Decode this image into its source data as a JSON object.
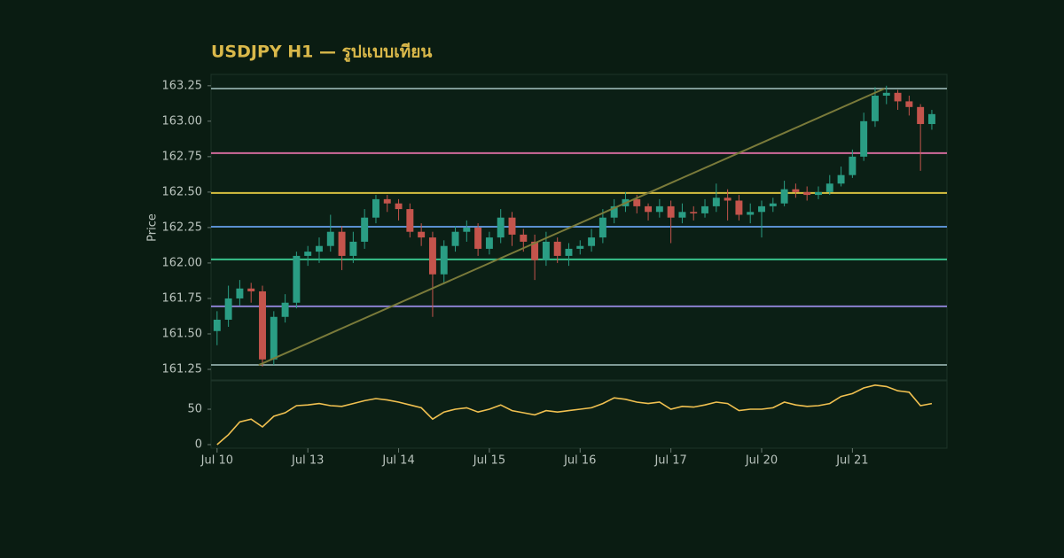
{
  "chart_data": [
    {
      "type": "candlestick",
      "title": "USDJPY H1 — รูปแบบเทียน",
      "ylabel": "Price",
      "up_color": "#2a9d84",
      "down_color": "#c4544c",
      "x": [
        0,
        3,
        6,
        9,
        12,
        15,
        18,
        21,
        24,
        27,
        30,
        33,
        36,
        39,
        42,
        45,
        48,
        51,
        54,
        57,
        60,
        63,
        66,
        69,
        72,
        75,
        78,
        81,
        84,
        87,
        90,
        93,
        96,
        99,
        102,
        105,
        108,
        111,
        114,
        117,
        120,
        123,
        126,
        129,
        132,
        135,
        138,
        141,
        144,
        147,
        150,
        153,
        156,
        159,
        162,
        165,
        168,
        171,
        174,
        177,
        180,
        183,
        186,
        189
      ],
      "open": [
        161.52,
        161.6,
        161.75,
        161.82,
        161.8,
        161.32,
        161.62,
        161.72,
        162.05,
        162.08,
        162.12,
        162.22,
        162.05,
        162.15,
        162.32,
        162.45,
        162.42,
        162.38,
        162.22,
        162.18,
        161.92,
        162.12,
        162.22,
        162.25,
        162.1,
        162.18,
        162.32,
        162.2,
        162.15,
        162.02,
        162.15,
        162.05,
        162.1,
        162.12,
        162.18,
        162.32,
        162.4,
        162.45,
        162.4,
        162.36,
        162.4,
        162.32,
        162.36,
        162.35,
        162.4,
        162.46,
        162.44,
        162.34,
        162.36,
        162.4,
        162.42,
        162.52,
        162.5,
        162.48,
        162.5,
        162.56,
        162.62,
        162.75,
        163.0,
        163.18,
        163.2,
        163.14,
        163.1,
        162.98
      ],
      "high": [
        161.66,
        161.84,
        161.88,
        161.86,
        161.84,
        161.66,
        161.78,
        162.08,
        162.12,
        162.18,
        162.34,
        162.26,
        162.22,
        162.38,
        162.48,
        162.48,
        162.45,
        162.42,
        162.28,
        162.22,
        162.16,
        162.26,
        162.3,
        162.28,
        162.22,
        162.38,
        162.36,
        162.24,
        162.2,
        162.22,
        162.18,
        162.14,
        162.16,
        162.24,
        162.38,
        162.45,
        162.5,
        162.48,
        162.42,
        162.45,
        162.44,
        162.42,
        162.4,
        162.45,
        162.56,
        162.52,
        162.48,
        162.42,
        162.44,
        162.46,
        162.58,
        162.56,
        162.54,
        162.54,
        162.62,
        162.68,
        162.8,
        163.06,
        163.24,
        163.25,
        163.22,
        163.18,
        163.12,
        163.08
      ],
      "low": [
        161.42,
        161.55,
        161.7,
        161.72,
        161.27,
        161.28,
        161.58,
        161.68,
        161.98,
        162.0,
        162.08,
        161.95,
        162.0,
        162.1,
        162.28,
        162.36,
        162.3,
        162.18,
        162.12,
        161.62,
        161.85,
        162.08,
        162.15,
        162.05,
        162.06,
        162.14,
        162.12,
        162.08,
        161.88,
        161.98,
        162.0,
        161.98,
        162.06,
        162.08,
        162.14,
        162.28,
        162.36,
        162.35,
        162.3,
        162.32,
        162.14,
        162.28,
        162.3,
        162.32,
        162.36,
        162.3,
        162.3,
        162.28,
        162.18,
        162.36,
        162.4,
        162.46,
        162.44,
        162.45,
        162.48,
        162.54,
        162.6,
        162.72,
        162.96,
        163.12,
        163.08,
        163.04,
        162.65,
        162.94
      ],
      "close": [
        161.6,
        161.75,
        161.82,
        161.8,
        161.32,
        161.62,
        161.72,
        162.05,
        162.08,
        162.12,
        162.22,
        162.05,
        162.15,
        162.32,
        162.45,
        162.42,
        162.38,
        162.22,
        162.18,
        161.92,
        162.12,
        162.22,
        162.25,
        162.1,
        162.18,
        162.32,
        162.2,
        162.15,
        162.02,
        162.15,
        162.05,
        162.1,
        162.12,
        162.18,
        162.32,
        162.4,
        162.45,
        162.4,
        162.36,
        162.4,
        162.32,
        162.36,
        162.35,
        162.4,
        162.46,
        162.44,
        162.34,
        162.36,
        162.4,
        162.42,
        162.52,
        162.5,
        162.48,
        162.5,
        162.56,
        162.62,
        162.75,
        163.0,
        163.18,
        163.2,
        163.14,
        163.1,
        162.98,
        163.05
      ],
      "xlim": [
        -1.6,
        193
      ],
      "ylim": [
        161.175,
        163.33
      ],
      "yticks": [
        163.25,
        {
          "value": 163.0,
          "label": "163.00"
        },
        162.75,
        {
          "value": 162.5,
          "label": "162.50"
        },
        162.25,
        {
          "value": 162.0,
          "label": "162.00"
        },
        161.75,
        {
          "value": 161.5,
          "label": "161.50"
        },
        161.25
      ],
      "levels": [
        {
          "value": 163.23,
          "color": "#7f9a96"
        },
        {
          "value": 162.775,
          "color": "#d06a9a"
        },
        {
          "value": 162.494,
          "color": "#d8c040"
        },
        {
          "value": 162.256,
          "color": "#5a8fd0"
        },
        {
          "value": 162.025,
          "color": "#38c08a"
        },
        {
          "value": 161.694,
          "color": "#8a80d0"
        },
        {
          "value": 161.281,
          "color": "#7f9a96"
        }
      ],
      "trendline": {
        "x": [
          11,
          176.5
        ],
        "y": [
          161.28,
          163.23
        ],
        "color": "#7a7a3a"
      }
    },
    {
      "type": "line",
      "color": "#f0c050",
      "x": [
        0,
        3,
        6,
        9,
        12,
        15,
        18,
        21,
        24,
        27,
        30,
        33,
        36,
        39,
        42,
        45,
        48,
        51,
        54,
        57,
        60,
        63,
        66,
        69,
        72,
        75,
        78,
        81,
        84,
        87,
        90,
        93,
        96,
        99,
        102,
        105,
        108,
        111,
        114,
        117,
        120,
        123,
        126,
        129,
        132,
        135,
        138,
        141,
        144,
        147,
        150,
        153,
        156,
        159,
        162,
        165,
        168,
        171,
        174,
        177,
        180,
        183,
        186,
        189
      ],
      "values": [
        0,
        14,
        32,
        36,
        25,
        40,
        45,
        55,
        56,
        58,
        55,
        54,
        58,
        62,
        65,
        63,
        60,
        56,
        52,
        36,
        46,
        50,
        52,
        46,
        50,
        56,
        48,
        45,
        42,
        48,
        46,
        48,
        50,
        52,
        58,
        66,
        64,
        60,
        58,
        60,
        50,
        54,
        53,
        56,
        60,
        58,
        48,
        50,
        50,
        52,
        60,
        56,
        54,
        55,
        58,
        68,
        72,
        80,
        84,
        82,
        76,
        74,
        55,
        58
      ],
      "xlim": [
        -1.6,
        193
      ],
      "ylim": [
        -5,
        90
      ],
      "yticks": [
        0,
        50
      ],
      "xticks": [
        {
          "value": 0,
          "label": "Jul 10"
        },
        {
          "value": 24,
          "label": "Jul 13"
        },
        {
          "value": 48,
          "label": "Jul 14"
        },
        {
          "value": 72,
          "label": "Jul 15"
        },
        {
          "value": 96,
          "label": "Jul 16"
        },
        {
          "value": 120,
          "label": "Jul 17"
        },
        {
          "value": 144,
          "label": "Jul 20"
        },
        {
          "value": 168,
          "label": "Jul 21"
        }
      ]
    }
  ]
}
